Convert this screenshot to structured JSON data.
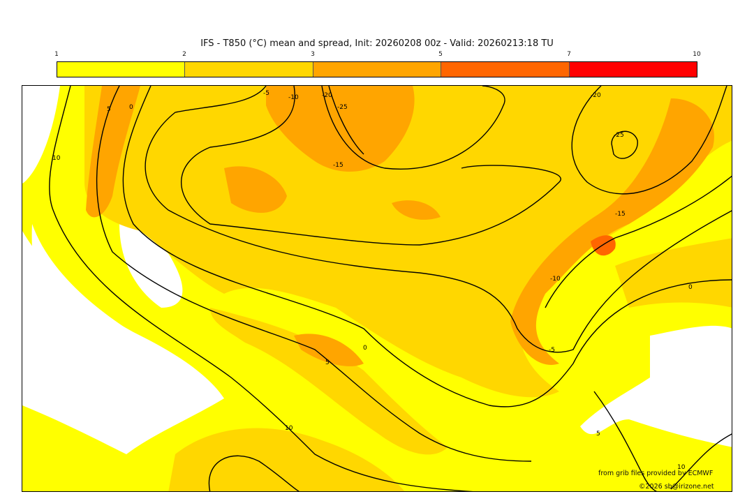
{
  "title": "IFS - T850 (°C) mean and spread, Init: 20260208 00z - Valid: 20260213:18 TU",
  "colorbar": {
    "ticks": [
      "1",
      "2",
      "3",
      "5",
      "7",
      "10"
    ],
    "colors": [
      "#FFFF00",
      "#FFD700",
      "#FFA500",
      "#FF6600",
      "#FF0000"
    ]
  },
  "contour_labels": [
    "10",
    "5",
    "0",
    "-5",
    "-10",
    "-20",
    "-25",
    "-15",
    "-20",
    "-25",
    "-15",
    "-10",
    "0",
    "-5",
    "0",
    "5",
    "10",
    "5",
    "10"
  ],
  "credits": {
    "source": "from grib files provided by ECMWF",
    "copyright": "©2026 sb@irizone.net"
  }
}
